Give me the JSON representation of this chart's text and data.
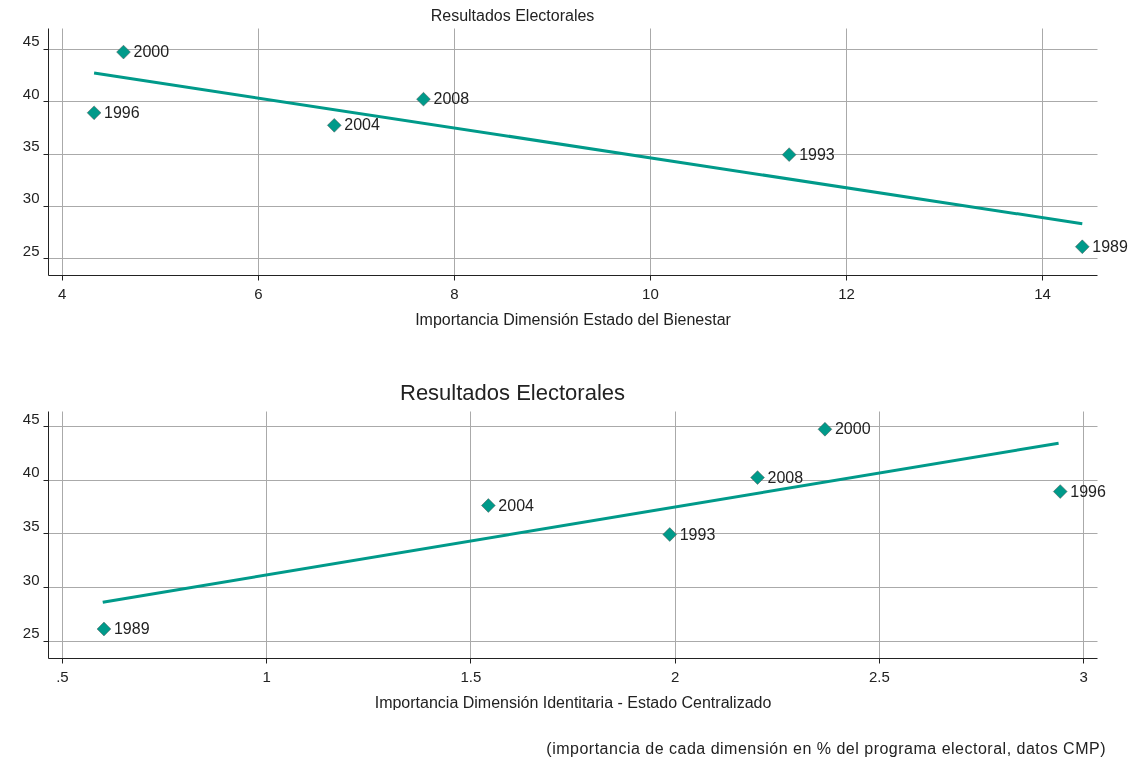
{
  "chart_data": [
    {
      "type": "scatter",
      "title": "Resultados Electorales",
      "xlabel": "Importancia Dimensión Estado del Bienestar",
      "xlim": [
        3.86,
        14.56
      ],
      "ylim": [
        23.4,
        47
      ],
      "xticks": [
        4,
        6,
        8,
        10,
        12,
        14
      ],
      "yticks": [
        25,
        30,
        35,
        40,
        45
      ],
      "grid": true,
      "marker": "diamond",
      "series": [
        {
          "type": "scatter",
          "color": "#009a8a",
          "x": [
            4.33,
            4.63,
            6.78,
            7.69,
            11.42,
            14.41
          ],
          "values": [
            38.9,
            44.7,
            37.7,
            40.2,
            34.9,
            26.1
          ]
        },
        {
          "type": "line",
          "color": "#009a8a",
          "line_style": "solid",
          "marker": "none",
          "x": [
            4.33,
            14.41
          ],
          "values": [
            42.7,
            28.3
          ]
        }
      ],
      "annotations": [
        {
          "text": "1996",
          "x": 4.33,
          "y": 38.9
        },
        {
          "text": "2000",
          "x": 4.63,
          "y": 44.7
        },
        {
          "text": "2004",
          "x": 6.78,
          "y": 37.7
        },
        {
          "text": "2008",
          "x": 7.69,
          "y": 40.2
        },
        {
          "text": "1993",
          "x": 11.42,
          "y": 34.9
        },
        {
          "text": "1989",
          "x": 14.41,
          "y": 26.1
        }
      ]
    },
    {
      "type": "scatter",
      "title": "Resultados Electorales",
      "xlabel": "Importancia Dimensión Identitaria - Estado Centralizado",
      "xlim": [
        0.466,
        3.034
      ],
      "ylim": [
        23.4,
        46.4
      ],
      "xticks": [
        {
          "value": 0.5,
          "label": ".5"
        },
        1,
        1.5,
        2,
        2.5,
        3
      ],
      "yticks": [
        25,
        30,
        35,
        40,
        45
      ],
      "grid": true,
      "marker": "diamond",
      "series": [
        {
          "type": "scatter",
          "color": "#009a8a",
          "x": [
            0.603,
            1.544,
            1.988,
            2.203,
            2.368,
            2.944
          ],
          "values": [
            26.1,
            37.6,
            34.9,
            40.2,
            44.7,
            38.9
          ]
        },
        {
          "type": "line",
          "color": "#009a8a",
          "line_style": "solid",
          "marker": "none",
          "x": [
            0.6,
            2.94
          ],
          "values": [
            28.6,
            43.4
          ]
        }
      ],
      "annotations": [
        {
          "text": "1989",
          "x": 0.603,
          "y": 26.1
        },
        {
          "text": "2004",
          "x": 1.544,
          "y": 37.6
        },
        {
          "text": "1993",
          "x": 1.988,
          "y": 34.9
        },
        {
          "text": "2008",
          "x": 2.203,
          "y": 40.2
        },
        {
          "text": "2000",
          "x": 2.368,
          "y": 44.7
        },
        {
          "text": "1996",
          "x": 2.944,
          "y": 38.9
        },
        "(importancia de cada dimensión en % del programa electoral, datos CMP)"
      ]
    }
  ]
}
